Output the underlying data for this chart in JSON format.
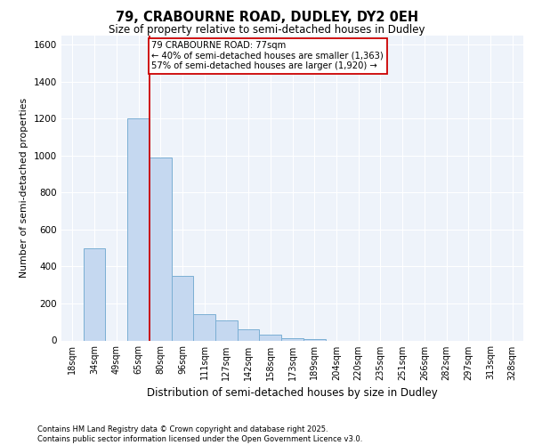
{
  "title_line1": "79, CRABOURNE ROAD, DUDLEY, DY2 0EH",
  "title_line2": "Size of property relative to semi-detached houses in Dudley",
  "xlabel": "Distribution of semi-detached houses by size in Dudley",
  "ylabel": "Number of semi-detached properties",
  "categories": [
    "18sqm",
    "34sqm",
    "49sqm",
    "65sqm",
    "80sqm",
    "96sqm",
    "111sqm",
    "127sqm",
    "142sqm",
    "158sqm",
    "173sqm",
    "189sqm",
    "204sqm",
    "220sqm",
    "235sqm",
    "251sqm",
    "266sqm",
    "282sqm",
    "297sqm",
    "313sqm",
    "328sqm"
  ],
  "values": [
    0,
    500,
    0,
    1200,
    990,
    350,
    140,
    110,
    60,
    30,
    10,
    5,
    0,
    0,
    0,
    0,
    0,
    0,
    0,
    0,
    0
  ],
  "bar_color": "#C5D8F0",
  "bar_edge_color": "#7BAFD4",
  "vline_color": "#CC0000",
  "annotation_text": "79 CRABOURNE ROAD: 77sqm\n← 40% of semi-detached houses are smaller (1,363)\n57% of semi-detached houses are larger (1,920) →",
  "annotation_box_edge_color": "#CC0000",
  "ylim": [
    0,
    1650
  ],
  "yticks": [
    0,
    200,
    400,
    600,
    800,
    1000,
    1200,
    1400,
    1600
  ],
  "footer_line1": "Contains HM Land Registry data © Crown copyright and database right 2025.",
  "footer_line2": "Contains public sector information licensed under the Open Government Licence v3.0.",
  "bg_color": "#EEF3FA",
  "grid_color": "#FFFFFF"
}
